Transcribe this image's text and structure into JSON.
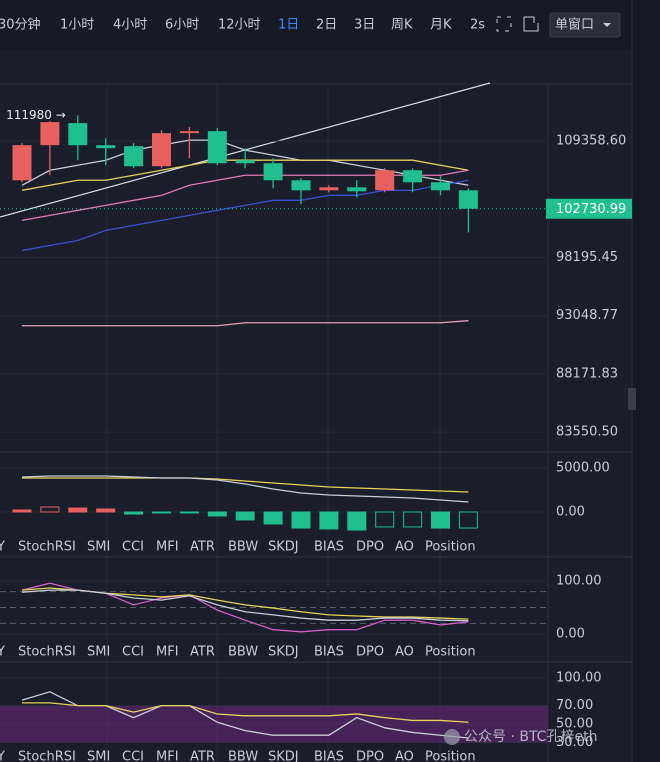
{
  "toolbar": {
    "intervals": [
      "30分钟",
      "1小时",
      "4小时",
      "6小时",
      "12小时",
      "1日",
      "2日",
      "3日",
      "周K",
      "月K",
      "2s"
    ],
    "window_button": "单窗口"
  },
  "indicator_tabs": [
    "Y",
    "StochRSI",
    "SMI",
    "CCI",
    "MFI",
    "ATR",
    "BBW",
    "SKDJ",
    "BIAS",
    "DPO",
    "AO",
    "Position"
  ],
  "watermark": "公众号 · BTC孔梓eth",
  "chart_data": [
    {
      "type": "candlestick",
      "log": true,
      "ylim": [
        82180,
        115190
      ],
      "yticks": [
        {
          "value": 109358.6,
          "label": "109358.60"
        },
        98195.45,
        93048.77,
        88171.83,
        {
          "value": 83550.5,
          "label": "83550.50"
        }
      ],
      "grid": true,
      "up_color": "#e8605e",
      "down_color": "#1fbf8f",
      "annotation": "111980 →",
      "open": [
        105474,
        108953,
        111200,
        108953,
        108852,
        106851,
        110174,
        110378,
        107448,
        107148,
        105474,
        104497,
        104788,
        104497,
        106455,
        105276,
        104497
      ],
      "high": [
        109155,
        111400,
        111980,
        109663,
        109155,
        110481,
        110789,
        110686,
        108651,
        107647,
        105667,
        104985,
        105474,
        106652,
        106652,
        105864,
        104691
      ],
      "low": [
        105276,
        105962,
        107448,
        106950,
        106652,
        106652,
        107647,
        106950,
        106652,
        104691,
        103148,
        104302,
        103818,
        104302,
        104302,
        104013,
        100503
      ],
      "close": [
        108953,
        111304,
        108953,
        108651,
        106851,
        110174,
        110378,
        107148,
        107148,
        105474,
        104497,
        104788,
        104400,
        106455,
        105276,
        104497,
        102730.99
      ],
      "last_price": 102730.99,
      "series": [
        {
          "color": "#c8ccd6",
          "values": [
            104985,
            106455,
            106950,
            107448,
            108450,
            108953,
            109460,
            109460,
            108450,
            107950,
            107448,
            107448,
            106950,
            106455,
            105962,
            105474,
            104985
          ]
        },
        {
          "color": "#e6d25a",
          "values": [
            104497,
            104985,
            105474,
            105474,
            105962,
            106455,
            106950,
            107448,
            107448,
            107448,
            107448,
            107448,
            107448,
            107448,
            107448,
            106950,
            106455
          ]
        },
        {
          "color": "#e07ab8",
          "values": [
            101635,
            102105,
            102580,
            103055,
            103534,
            104013,
            104985,
            105474,
            105962,
            105962,
            105962,
            105962,
            105962,
            105962,
            105962,
            105962,
            106455
          ]
        },
        {
          "color": "#3a4fd0",
          "values": [
            98840,
            99300,
            99760,
            100690,
            101160,
            101635,
            102105,
            102580,
            103055,
            103534,
            103534,
            104013,
            104013,
            104497,
            104497,
            104985,
            105474
          ]
        },
        {
          "color": "#e2a3b5",
          "values": [
            92193,
            92193,
            92193,
            92193,
            92193,
            92193,
            92193,
            92193,
            92449,
            92449,
            92449,
            92449,
            92449,
            92449,
            92449,
            92449,
            92622
          ]
        }
      ]
    },
    {
      "type": "bar",
      "ylim": [
        -2613,
        6477
      ],
      "yticks": [
        {
          "value": 5000,
          "label": "5000.00"
        },
        {
          "value": 0,
          "label": "0.00"
        }
      ],
      "up_color": "#e8605e",
      "down_color": "#1fbf8f",
      "values": [
        230,
        570,
        450,
        340,
        -230,
        -110,
        -110,
        -450,
        -900,
        -1360,
        -1820,
        -1930,
        -2050,
        -1700,
        -1700,
        -1820,
        -1820
      ],
      "series": [
        {
          "color": "#e6d25a",
          "values": [
            3862,
            3862,
            3862,
            3862,
            3862,
            3862,
            3862,
            3749,
            3522,
            3294,
            3067,
            2840,
            2726,
            2613,
            2499,
            2386,
            2272
          ]
        },
        {
          "color": "#c8ccd6",
          "values": [
            3976,
            4090,
            4090,
            4090,
            3976,
            3862,
            3862,
            3635,
            3181,
            2613,
            2158,
            1931,
            1818,
            1704,
            1590,
            1363,
            1136
          ]
        }
      ]
    },
    {
      "type": "line",
      "ylim": [
        -21,
        140
      ],
      "yticks": [
        {
          "value": 100,
          "label": "100.00"
        },
        {
          "value": 0,
          "label": "0.00"
        }
      ],
      "levels": [
        80,
        50,
        20
      ],
      "series": [
        {
          "color": "#d05fc8",
          "values": [
            83,
            96,
            83,
            77,
            55,
            68,
            74,
            45,
            26,
            8,
            4,
            8,
            8,
            26,
            26,
            17,
            23
          ]
        },
        {
          "color": "#e6d25a",
          "values": [
            83,
            87,
            83,
            77,
            74,
            70,
            74,
            64,
            55,
            49,
            42,
            36,
            34,
            32,
            32,
            30,
            28
          ]
        },
        {
          "color": "#c8ccd6",
          "values": [
            79,
            83,
            83,
            77,
            68,
            64,
            72,
            55,
            42,
            36,
            30,
            26,
            26,
            30,
            30,
            26,
            25
          ]
        }
      ]
    },
    {
      "type": "line",
      "ylim": [
        9,
        114
      ],
      "yticks": [
        {
          "value": 100,
          "label": "100.00"
        },
        {
          "value": 70,
          "label": "70.00"
        },
        {
          "value": 50,
          "label": "50.00"
        },
        {
          "value": 30,
          "label": "30.00"
        }
      ],
      "series": [
        {
          "color": "#c8ccd6",
          "values": [
            76,
            85,
            70,
            70,
            57,
            70,
            70,
            52,
            43,
            38,
            38,
            38,
            57,
            46,
            41,
            38,
            35
          ]
        },
        {
          "color": "#e6d25a",
          "values": [
            73,
            73,
            70,
            70,
            63,
            70,
            70,
            61,
            59,
            59,
            59,
            59,
            61,
            57,
            54,
            54,
            52
          ]
        }
      ]
    }
  ]
}
